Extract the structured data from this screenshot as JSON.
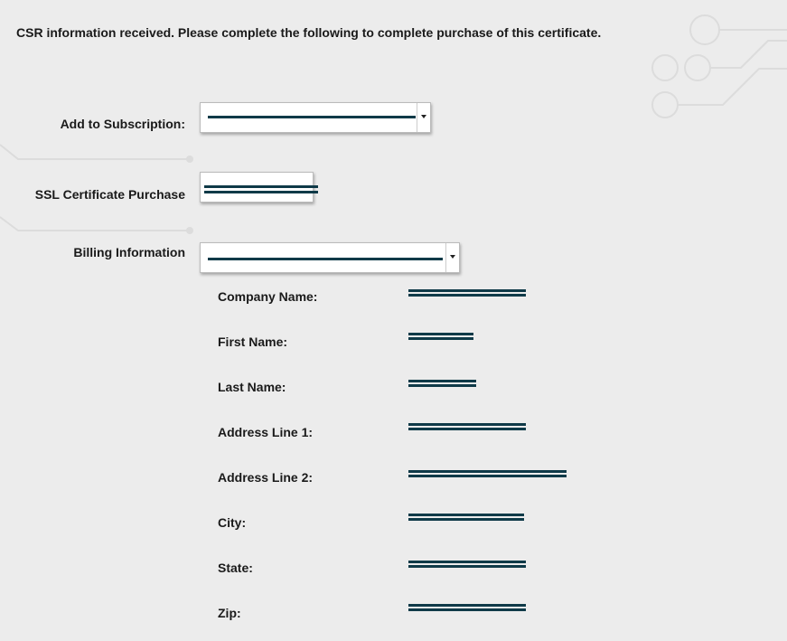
{
  "header": {
    "message": "CSR information received. Please complete the following to complete purchase of this certificate."
  },
  "form": {
    "subscription_label": "Add to Subscription:",
    "ssl_label": "SSL Certificate Purchase",
    "billing_label": "Billing Information",
    "billing_fields": [
      "Company Name:",
      "First Name:",
      "Last Name:",
      "Address Line 1:",
      "Address Line 2:",
      "City:",
      "State:",
      "Zip:"
    ]
  }
}
